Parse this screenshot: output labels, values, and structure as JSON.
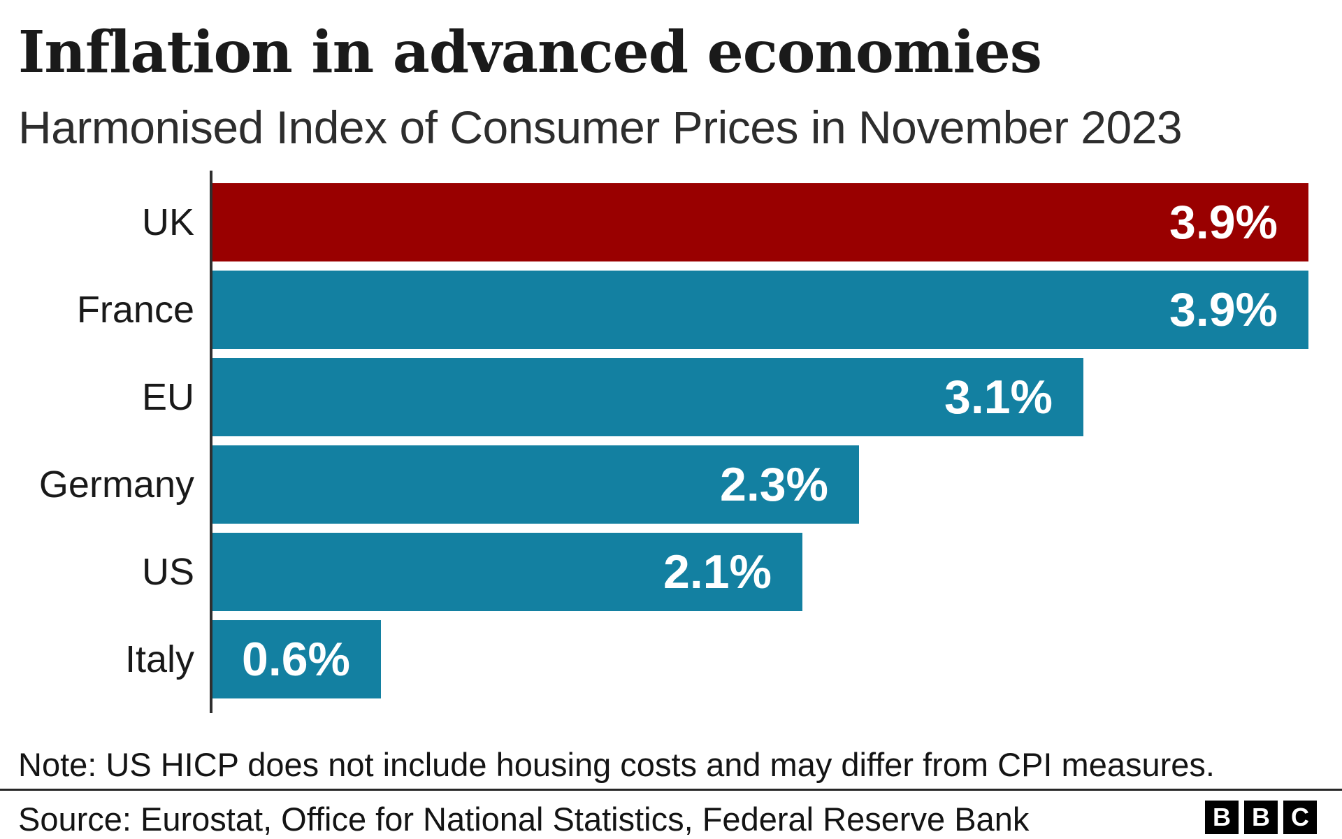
{
  "header": {
    "title": "Inflation in advanced economies",
    "subtitle": "Harmonised Index of Consumer Prices in November 2023"
  },
  "chart_data": {
    "type": "bar",
    "orientation": "horizontal",
    "title": "Inflation in advanced economies",
    "subtitle": "Harmonised Index of Consumer Prices in November 2023",
    "categories": [
      "UK",
      "France",
      "EU",
      "Germany",
      "US",
      "Italy"
    ],
    "values": [
      3.9,
      3.9,
      3.1,
      2.3,
      2.1,
      0.6
    ],
    "value_labels": [
      "3.9%",
      "3.9%",
      "3.1%",
      "2.3%",
      "2.1%",
      "0.6%"
    ],
    "xlim": [
      0,
      3.9
    ],
    "grid": false,
    "legend": false,
    "highlight_category": "UK",
    "highlight_color": "#990000",
    "default_color": "#1380a1",
    "value_label_color": "#ffffff",
    "axis_color": "#2f2f2f"
  },
  "footer": {
    "note": "Note: US HICP does not include housing costs and may differ from CPI measures.",
    "source": "Source: Eurostat, Office for National Statistics, Federal Reserve Bank",
    "logo_letters": [
      "B",
      "B",
      "C"
    ]
  }
}
